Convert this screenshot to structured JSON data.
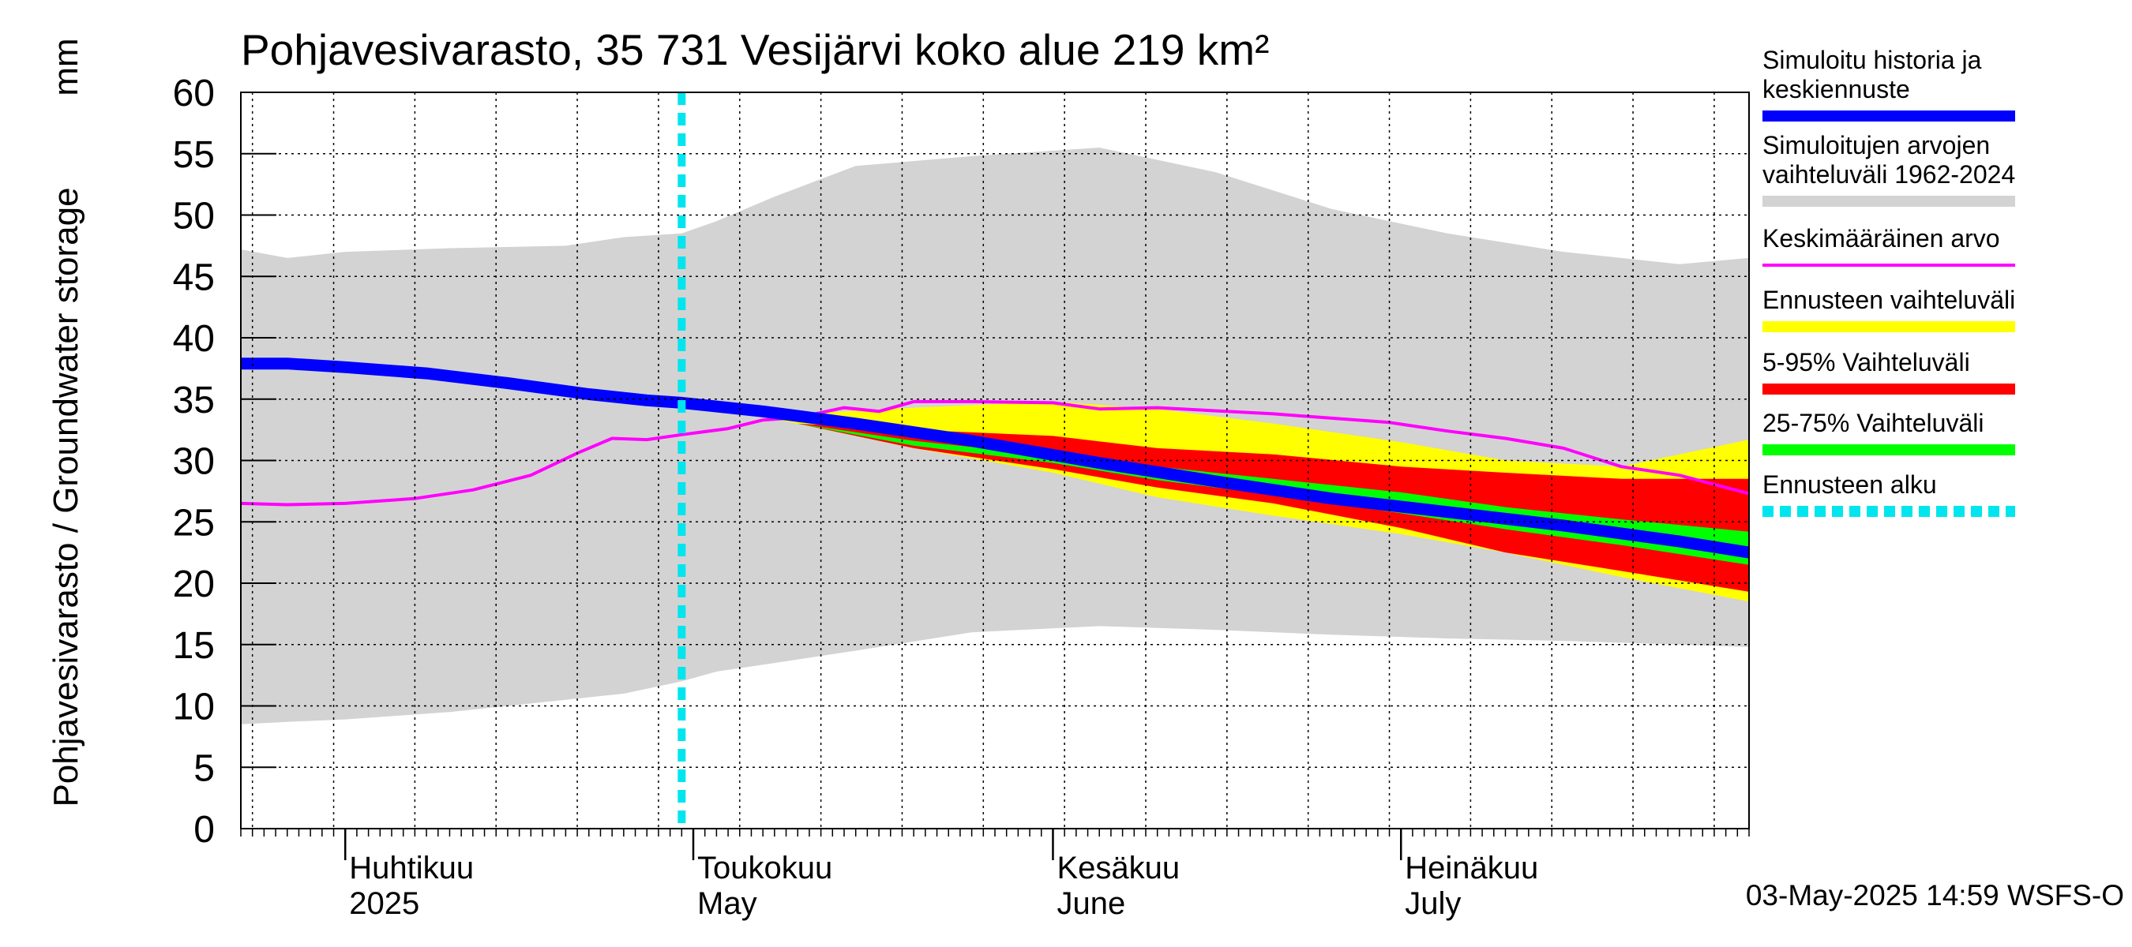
{
  "chart_data": {
    "type": "area",
    "title": "Pohjavesivarasto, 35 731 Vesijärvi koko alue 219 km²",
    "ylabel": "Pohjavesivarasto / Groundwater storage",
    "yunit": "mm",
    "ylim": [
      0,
      60
    ],
    "yticks": [
      0,
      5,
      10,
      15,
      20,
      25,
      30,
      35,
      40,
      45,
      50,
      55,
      60
    ],
    "xlim": [
      "2025-03-23",
      "2025-07-31"
    ],
    "grid": true,
    "legend_position": "right",
    "month_labels": [
      {
        "fi": "Huhtikuu",
        "en": "2025",
        "date": "2025-04-01"
      },
      {
        "fi": "Toukokuu",
        "en": "May",
        "date": "2025-05-01"
      },
      {
        "fi": "Kesäkuu",
        "en": "June",
        "date": "2025-06-01"
      },
      {
        "fi": "Heinäkuu",
        "en": "July",
        "date": "2025-07-01"
      }
    ],
    "forecast_start": "2025-04-30",
    "timestamp": "03-May-2025 14:59 WSFS-O",
    "legend": [
      {
        "label": "Simuloitu historia ja keskiennuste",
        "color": "#0000ff",
        "style": "thick"
      },
      {
        "label": "Simuloitujen arvojen vaihteluväli 1962-2024",
        "color": "#d3d3d3",
        "style": "band"
      },
      {
        "label": "Keskimääräinen arvo",
        "color": "#ff00ff",
        "style": "line"
      },
      {
        "label": "Ennusteen vaihteluväli",
        "color": "#ffff00",
        "style": "band"
      },
      {
        "label": "5-95% Vaihteluväli",
        "color": "#ff0000",
        "style": "band"
      },
      {
        "label": "25-75% Vaihteluväli",
        "color": "#00ff00",
        "style": "band"
      },
      {
        "label": "Ennusteen alku",
        "color": "#00e5ee",
        "style": "dashed"
      }
    ],
    "series": [
      {
        "name": "Simuloitujen arvojen vaihteluväli 1962-2024",
        "kind": "band",
        "x": [
          "2025-03-23",
          "2025-03-27",
          "2025-04-01",
          "2025-04-10",
          "2025-04-20",
          "2025-04-25",
          "2025-04-30",
          "2025-05-03",
          "2025-05-08",
          "2025-05-15",
          "2025-05-25",
          "2025-06-05",
          "2025-06-15",
          "2025-06-25",
          "2025-07-05",
          "2025-07-15",
          "2025-07-25",
          "2025-07-31"
        ],
        "low": [
          8.5,
          8.7,
          8.9,
          9.5,
          10.5,
          11,
          12,
          12.8,
          13.5,
          14.5,
          16,
          16.5,
          16.2,
          15.8,
          15.5,
          15.3,
          15,
          14.8
        ],
        "high": [
          47.2,
          46.5,
          47,
          47.3,
          47.5,
          48.2,
          48.5,
          49.5,
          51.5,
          54,
          54.8,
          55.5,
          53.5,
          50.5,
          48.5,
          47,
          46,
          46.5
        ]
      },
      {
        "name": "Ennusteen vaihteluväli",
        "kind": "band",
        "x": [
          "2025-04-30",
          "2025-05-10",
          "2025-05-20",
          "2025-06-01",
          "2025-06-10",
          "2025-06-20",
          "2025-07-01",
          "2025-07-10",
          "2025-07-20",
          "2025-07-31"
        ],
        "low": [
          34.7,
          33,
          31,
          29,
          27,
          25.5,
          24,
          22.5,
          20.5,
          18.5
        ],
        "high": [
          34.7,
          33.8,
          34.3,
          34.8,
          34.2,
          33,
          31.5,
          30,
          29.5,
          31.7
        ]
      },
      {
        "name": "5-95% Vaihteluväli",
        "kind": "band",
        "x": [
          "2025-04-30",
          "2025-05-10",
          "2025-05-20",
          "2025-06-01",
          "2025-06-10",
          "2025-06-20",
          "2025-07-01",
          "2025-07-10",
          "2025-07-20",
          "2025-07-31"
        ],
        "low": [
          34.7,
          33,
          31,
          29.3,
          27.8,
          26.5,
          24.5,
          22.5,
          21,
          19.3
        ],
        "high": [
          34.7,
          33,
          32.5,
          32,
          31,
          30.5,
          29.5,
          29,
          28.5,
          28.5
        ]
      },
      {
        "name": "25-75% Vaihteluväli",
        "kind": "band",
        "x": [
          "2025-04-30",
          "2025-05-10",
          "2025-05-20",
          "2025-06-01",
          "2025-06-10",
          "2025-06-20",
          "2025-07-01",
          "2025-07-10",
          "2025-07-20",
          "2025-07-31"
        ],
        "low": [
          34.7,
          33,
          31.2,
          29.8,
          28.4,
          27.2,
          25.7,
          24.4,
          23.1,
          21.5
        ],
        "high": [
          34.7,
          33,
          31.6,
          30.4,
          29.5,
          28.5,
          27.4,
          26.2,
          25.2,
          24.2
        ]
      },
      {
        "name": "Keskimääräinen arvo",
        "kind": "line",
        "x": [
          "2025-03-23",
          "2025-03-27",
          "2025-04-01",
          "2025-04-07",
          "2025-04-12",
          "2025-04-17",
          "2025-04-21",
          "2025-04-24",
          "2025-04-27",
          "2025-04-30",
          "2025-05-04",
          "2025-05-07",
          "2025-05-10",
          "2025-05-14",
          "2025-05-17",
          "2025-05-20",
          "2025-05-25",
          "2025-06-01",
          "2025-06-05",
          "2025-06-10",
          "2025-06-20",
          "2025-06-30",
          "2025-07-05",
          "2025-07-10",
          "2025-07-15",
          "2025-07-20",
          "2025-07-25",
          "2025-07-31"
        ],
        "y": [
          26.5,
          26.4,
          26.5,
          26.9,
          27.6,
          28.8,
          30.6,
          31.8,
          31.7,
          32.1,
          32.6,
          33.3,
          33.5,
          34.3,
          34.0,
          34.8,
          34.8,
          34.7,
          34.2,
          34.3,
          33.8,
          33.1,
          32.4,
          31.8,
          31.0,
          29.5,
          28.8,
          27.3
        ]
      },
      {
        "name": "Simuloitu historia ja keskiennuste",
        "kind": "line",
        "x": [
          "2025-03-23",
          "2025-03-27",
          "2025-04-01",
          "2025-04-08",
          "2025-04-15",
          "2025-04-22",
          "2025-04-27",
          "2025-04-30",
          "2025-05-07",
          "2025-05-15",
          "2025-05-25",
          "2025-06-05",
          "2025-06-15",
          "2025-06-25",
          "2025-07-05",
          "2025-07-15",
          "2025-07-25",
          "2025-07-31"
        ],
        "y": [
          37.9,
          37.9,
          37.6,
          37.1,
          36.3,
          35.4,
          34.9,
          34.7,
          34.0,
          33.0,
          31.6,
          29.8,
          28.3,
          26.9,
          25.8,
          24.7,
          23.4,
          22.5
        ]
      }
    ]
  }
}
